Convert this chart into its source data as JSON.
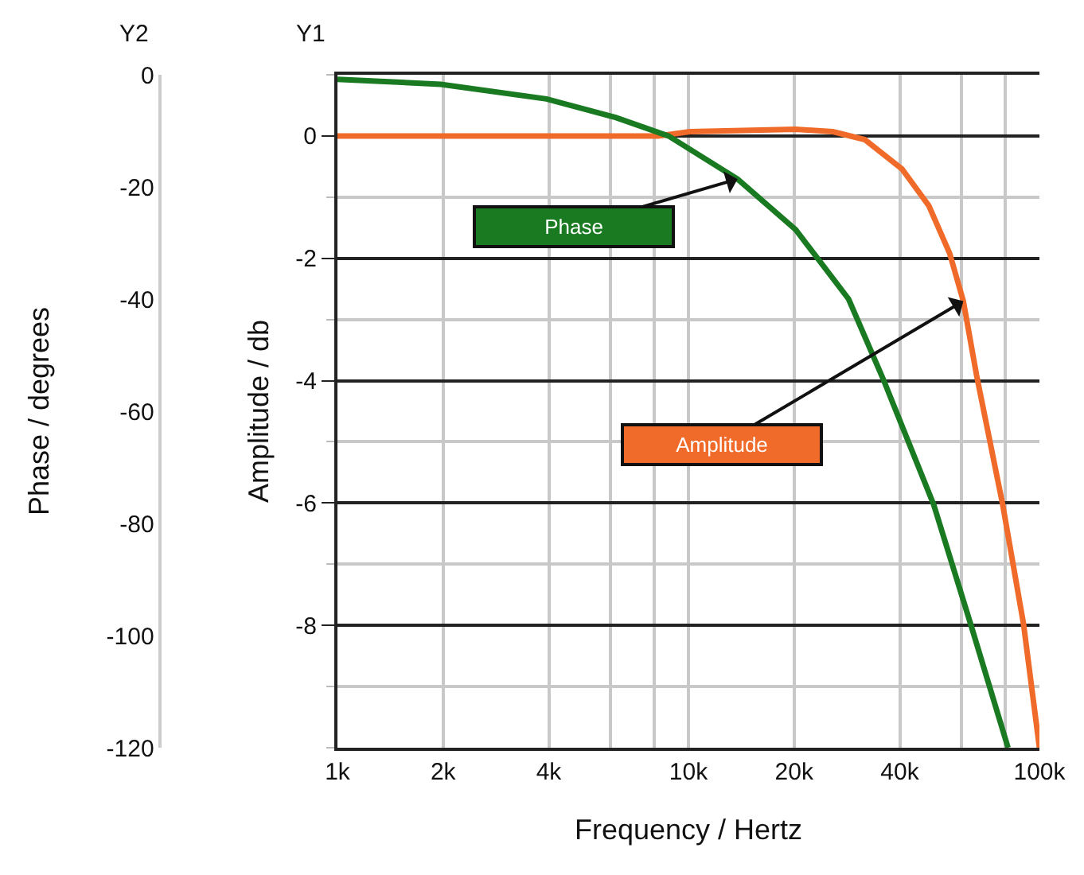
{
  "chart_data": {
    "type": "line",
    "xlabel": "Frequency / Hertz",
    "ylabel": "Amplitude / db",
    "y2label": "Phase / degrees",
    "log": "x",
    "grid": true,
    "legend": false,
    "line_style": "solid",
    "marker": "none",
    "xlim": [
      1000,
      100000
    ],
    "xticks": [
      {
        "value": 1000,
        "label": "1k"
      },
      {
        "value": 2000,
        "label": "2k"
      },
      {
        "value": 4000,
        "label": "4k"
      },
      {
        "value": 6000,
        "label": null
      },
      {
        "value": 8000,
        "label": null
      },
      {
        "value": 10000,
        "label": "10k"
      },
      {
        "value": 20000,
        "label": "20k"
      },
      {
        "value": 40000,
        "label": "40k"
      },
      {
        "value": 60000,
        "label": null
      },
      {
        "value": 80000,
        "label": null
      },
      {
        "value": 100000,
        "label": "100k"
      }
    ],
    "ylim": [
      -10,
      1
    ],
    "yticks": [
      {
        "value": 1,
        "label": null
      },
      0,
      {
        "value": -1,
        "label": null
      },
      -2,
      {
        "value": -3,
        "label": null
      },
      -4,
      {
        "value": -5,
        "label": null
      },
      -6,
      {
        "value": -7,
        "label": null
      },
      -8,
      {
        "value": -9,
        "label": null
      },
      {
        "value": -10,
        "label": null
      }
    ],
    "y2lim": [
      -120,
      0
    ],
    "y2ticks": [
      0,
      -20,
      -40,
      -60,
      -80,
      -100,
      -120
    ],
    "series": [
      {
        "name": "Amplitude",
        "color": "#f06a2a",
        "x": [
          1000,
          8200,
          10100,
          20200,
          25800,
          31800,
          40600,
          48400,
          55500,
          60700,
          66200,
          78600,
          90100,
          100000
        ],
        "values": [
          0,
          0,
          0.07,
          0.11,
          0.07,
          -0.06,
          -0.54,
          -1.14,
          -1.92,
          -2.7,
          -3.91,
          -6.03,
          -7.98,
          -10
        ]
      },
      {
        "name": "Phase",
        "color": "#1a7a22",
        "axis": "y2",
        "x": [
          1000,
          1970,
          3940,
          6200,
          8770,
          13800,
          20200,
          28600,
          35900,
          50000,
          63800,
          81400
        ],
        "values": [
          -0.8,
          -1.7,
          -4.3,
          -7.6,
          -10.9,
          -18.6,
          -27.6,
          -40,
          -54.3,
          -76.7,
          -98.1,
          -120
        ]
      }
    ],
    "annotations": [
      "Y2",
      "Y1"
    ]
  }
}
